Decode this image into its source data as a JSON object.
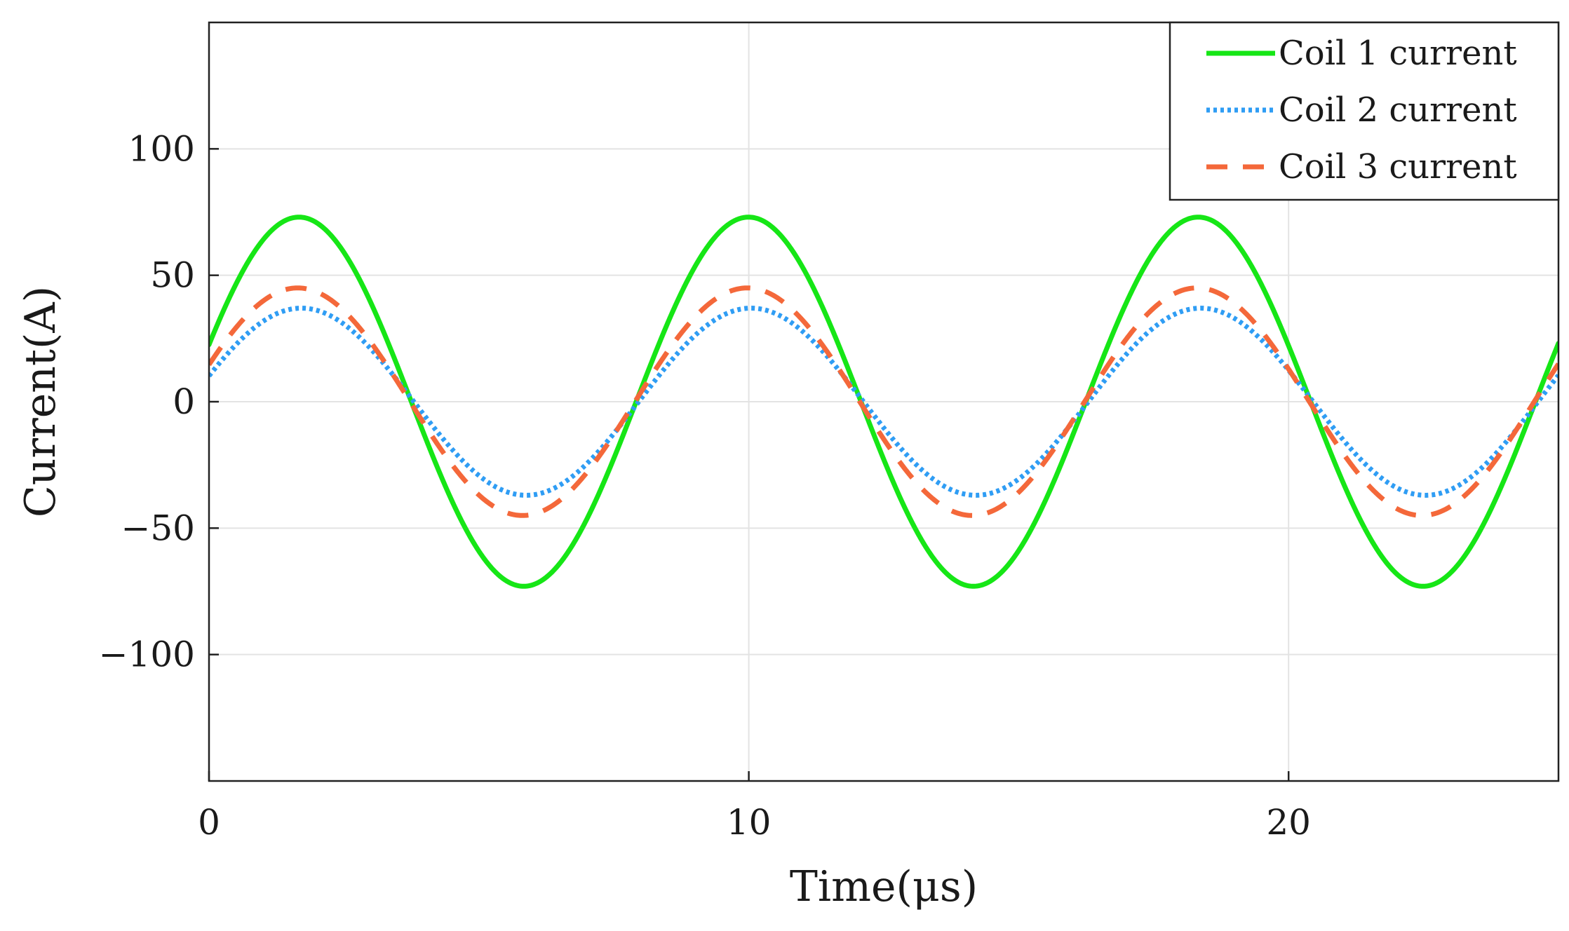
{
  "chart_data": {
    "type": "line",
    "title": "",
    "xlabel": "Time(μs)",
    "ylabel": "Current(A)",
    "xlim": [
      0,
      25
    ],
    "ylim": [
      -150,
      150
    ],
    "xticks": [
      0,
      10,
      20
    ],
    "xtick_labels": [
      "0",
      "10",
      "20"
    ],
    "yticks": [
      100,
      50,
      0,
      -50,
      -100
    ],
    "ytick_labels": [
      "100",
      "50",
      "0",
      "−50",
      "−100"
    ],
    "grid": true,
    "legend_position": "top-right",
    "period_us": 8.33,
    "series": [
      {
        "name": "Coil 1 current",
        "amplitude": 73,
        "phase_deg": 18,
        "color": "#16e616",
        "style": "solid"
      },
      {
        "name": "Coil 2 current",
        "amplitude": 37,
        "phase_deg": 16,
        "color": "#2f9df4",
        "style": "dotted"
      },
      {
        "name": "Coil 3 current",
        "amplitude": 45,
        "phase_deg": 19,
        "color": "#f4683a",
        "style": "dashed"
      }
    ]
  }
}
